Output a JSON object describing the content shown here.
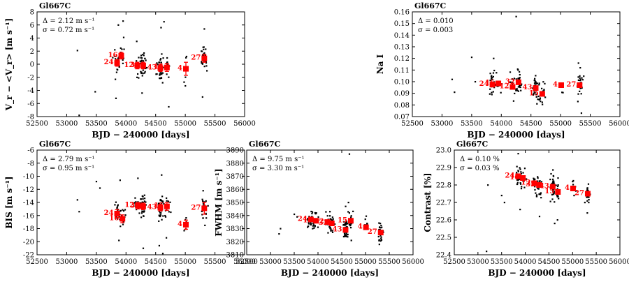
{
  "figure_name": "Gl667C",
  "chart_data": [
    {
      "id": "rv",
      "type": "scatter",
      "title": "Gl667C",
      "xlabel": "BJD − 240000 [days]",
      "ylabel": "V_r − <V_r> [m s⁻¹]",
      "xlim": [
        52500,
        56000
      ],
      "ylim": [
        -8,
        8
      ],
      "xticks": [
        52500,
        53000,
        53500,
        54000,
        54500,
        55000,
        55500,
        56000
      ],
      "yticks": [
        -8,
        -6,
        -4,
        -2,
        0,
        2,
        4,
        6,
        8
      ],
      "stats": [
        "Δ = 2.12 m s⁻¹",
        "σ = 0.72 m s⁻¹"
      ],
      "series": [
        {
          "name": "individual",
          "points": [
            [
              53180,
              2.1
            ],
            [
              53480,
              -4.2
            ],
            [
              53210,
              -7.8
            ],
            [
              53830,
              -5.2
            ],
            [
              53870,
              6.0
            ],
            [
              53960,
              4.1
            ],
            [
              53950,
              6.6
            ],
            [
              54180,
              3.5
            ],
            [
              54270,
              -4.4
            ],
            [
              54590,
              5.6
            ],
            [
              54640,
              6.5
            ],
            [
              54720,
              -6.5
            ],
            [
              55000,
              -3.3
            ],
            [
              55010,
              1.0
            ],
            [
              55290,
              -5.0
            ],
            [
              55320,
              5.4
            ],
            [
              55300,
              2.6
            ],
            [
              53820,
              -2.3
            ],
            [
              54250,
              1.0
            ],
            [
              54600,
              -1.5
            ]
          ]
        },
        {
          "name": "binned",
          "points": [
            {
              "x": 53850,
              "y": 0.2,
              "err": 0.5,
              "label": "24"
            },
            {
              "x": 53920,
              "y": 1.3,
              "err": 0.5,
              "label": "16"
            },
            {
              "x": 54190,
              "y": -0.2,
              "err": 0.5,
              "label": "12"
            },
            {
              "x": 54290,
              "y": -0.2,
              "err": 0.5,
              "label": "32"
            },
            {
              "x": 54580,
              "y": -0.6,
              "err": 0.5,
              "label": "43"
            },
            {
              "x": 54690,
              "y": -0.5,
              "err": 0.6,
              "label": "15"
            },
            {
              "x": 55010,
              "y": -0.7,
              "err": 1.0,
              "label": "4"
            },
            {
              "x": 55320,
              "y": 0.9,
              "err": 0.6,
              "label": "27"
            }
          ]
        }
      ]
    },
    {
      "id": "nai",
      "type": "scatter",
      "title": "Gl667C",
      "xlabel": "BJD − 240000 [days]",
      "ylabel": "Na I",
      "xlim": [
        52500,
        56000
      ],
      "ylim": [
        0.07,
        0.16
      ],
      "xticks": [
        52500,
        53000,
        53500,
        54000,
        54500,
        55000,
        55500,
        56000
      ],
      "yticks": [
        0.07,
        0.08,
        0.09,
        0.1,
        0.11,
        0.12,
        0.13,
        0.14,
        0.15,
        0.16
      ],
      "stats": [
        "Δ = 0.010",
        "σ = 0.003"
      ],
      "series": [
        {
          "name": "individual",
          "points": [
            [
              53170,
              0.102
            ],
            [
              53210,
              0.091
            ],
            [
              53500,
              0.121
            ],
            [
              53560,
              0.1
            ],
            [
              53870,
              0.12
            ],
            [
              54250,
              0.156
            ],
            [
              54600,
              0.081
            ],
            [
              55300,
              0.116
            ],
            [
              55330,
              0.112
            ],
            [
              55350,
              0.073
            ],
            [
              55290,
              0.083
            ],
            [
              54650,
              0.085
            ],
            [
              53840,
              0.089
            ]
          ]
        },
        {
          "name": "binned",
          "points": [
            {
              "x": 53850,
              "y": 0.0975,
              "err": 0.001,
              "label": "24"
            },
            {
              "x": 53950,
              "y": 0.0985,
              "err": 0.001,
              "label": "16"
            },
            {
              "x": 54190,
              "y": 0.0955,
              "err": 0.001,
              "label": "12"
            },
            {
              "x": 54290,
              "y": 0.0995,
              "err": 0.001,
              "label": "32"
            },
            {
              "x": 54580,
              "y": 0.0945,
              "err": 0.001,
              "label": "43"
            },
            {
              "x": 54690,
              "y": 0.0895,
              "err": 0.001,
              "label": "15"
            },
            {
              "x": 55010,
              "y": 0.097,
              "err": 0.001,
              "label": "4"
            },
            {
              "x": 55320,
              "y": 0.097,
              "err": 0.001,
              "label": "27"
            }
          ]
        }
      ]
    },
    {
      "id": "bis",
      "type": "scatter",
      "title": "Gl667C",
      "xlabel": "BJD − 240000 [days]",
      "ylabel": "BIS [m s⁻¹]",
      "xlim": [
        52500,
        56000
      ],
      "ylim": [
        -22,
        -6
      ],
      "xticks": [
        52500,
        53000,
        53500,
        54000,
        54500,
        55000,
        55500,
        56000
      ],
      "yticks": [
        -22,
        -20,
        -18,
        -16,
        -14,
        -12,
        -10,
        -8,
        -6
      ],
      "stats": [
        "Δ = 2.79 m s⁻¹",
        "σ = 0.95 m s⁻¹"
      ],
      "series": [
        {
          "name": "individual",
          "points": [
            [
              53180,
              -13.6
            ],
            [
              53210,
              -15.4
            ],
            [
              53500,
              -10.8
            ],
            [
              53560,
              -11.8
            ],
            [
              53880,
              -19.8
            ],
            [
              54200,
              -10.3
            ],
            [
              54290,
              -21.0
            ],
            [
              54560,
              -20.6
            ],
            [
              54620,
              -21.8
            ],
            [
              54600,
              -9.8
            ],
            [
              54980,
              -18.3
            ],
            [
              55300,
              -12.2
            ],
            [
              55330,
              -17.5
            ],
            [
              53900,
              -10.6
            ],
            [
              54680,
              -19.4
            ]
          ]
        },
        {
          "name": "binned",
          "points": [
            {
              "x": 53850,
              "y": -15.7,
              "err": 0.6,
              "label": "24"
            },
            {
              "x": 53940,
              "y": -16.5,
              "err": 0.6,
              "label": "16"
            },
            {
              "x": 54200,
              "y": -14.5,
              "err": 0.5,
              "label": "12"
            },
            {
              "x": 54290,
              "y": -14.6,
              "err": 0.5,
              "label": "32"
            },
            {
              "x": 54580,
              "y": -14.8,
              "err": 0.5,
              "label": "43"
            },
            {
              "x": 54690,
              "y": -14.6,
              "err": 0.6,
              "label": "15"
            },
            {
              "x": 55010,
              "y": -17.4,
              "err": 0.7,
              "label": "4"
            },
            {
              "x": 55320,
              "y": -14.9,
              "err": 0.9,
              "label": "27"
            }
          ]
        }
      ]
    },
    {
      "id": "fwhm",
      "type": "scatter",
      "title": "Gl667C",
      "xlabel": "BJD − 240000 [days]",
      "ylabel": "FWHM [m s⁻¹]",
      "xlim": [
        52500,
        56000
      ],
      "ylim": [
        3810,
        3890
      ],
      "xticks": [
        52500,
        53000,
        53500,
        54000,
        54500,
        55000,
        55500,
        56000
      ],
      "yticks": [
        3810,
        3820,
        3830,
        3840,
        3850,
        3860,
        3870,
        3880,
        3890
      ],
      "stats": [
        "Δ = 9.75 m s⁻¹",
        "σ = 3.30 m s⁻¹"
      ],
      "series": [
        {
          "name": "individual",
          "points": [
            [
              53180,
              3826
            ],
            [
              53210,
              3830
            ],
            [
              53500,
              3841
            ],
            [
              53560,
              3839
            ],
            [
              54580,
              3847
            ],
            [
              54660,
              3887
            ],
            [
              54640,
              3850
            ],
            [
              55290,
              3818
            ],
            [
              55340,
              3831
            ],
            [
              54700,
              3821
            ],
            [
              55030,
              3832
            ],
            [
              53850,
              3833
            ],
            [
              54250,
              3843
            ]
          ]
        },
        {
          "name": "binned",
          "points": [
            {
              "x": 53850,
              "y": 3837,
              "err": 1.0,
              "label": "24"
            },
            {
              "x": 53960,
              "y": 3836,
              "err": 1.0,
              "label": "16"
            },
            {
              "x": 54200,
              "y": 3835,
              "err": 1.0,
              "label": "12"
            },
            {
              "x": 54290,
              "y": 3834,
              "err": 1.0,
              "label": "32"
            },
            {
              "x": 54580,
              "y": 3829,
              "err": 1.2,
              "label": "43"
            },
            {
              "x": 54690,
              "y": 3836,
              "err": 1.0,
              "label": "15"
            },
            {
              "x": 55010,
              "y": 3831,
              "err": 1.0,
              "label": "4"
            },
            {
              "x": 55320,
              "y": 3827,
              "err": 1.5,
              "label": "27"
            }
          ]
        }
      ]
    },
    {
      "id": "contrast",
      "type": "scatter",
      "title": "Gl667C",
      "xlabel": "BJD − 240000 [days]",
      "ylabel": "Contrast [%]",
      "xlim": [
        52500,
        56000
      ],
      "ylim": [
        22.4,
        23.0
      ],
      "xticks": [
        52500,
        53000,
        53500,
        54000,
        54500,
        55000,
        55500,
        56000
      ],
      "yticks": [
        22.4,
        22.5,
        22.6,
        22.7,
        22.8,
        22.9,
        23.0
      ],
      "stats": [
        "Δ = 0.10 %",
        "σ = 0.03 %"
      ],
      "series": [
        {
          "name": "individual",
          "points": [
            [
              53180,
              22.42
            ],
            [
              53210,
              22.8
            ],
            [
              53500,
              22.74
            ],
            [
              53560,
              22.7
            ],
            [
              53850,
              22.98
            ],
            [
              54300,
              22.62
            ],
            [
              54620,
              22.58
            ],
            [
              54680,
              22.6
            ],
            [
              55000,
              22.82
            ],
            [
              55030,
              22.74
            ],
            [
              55310,
              22.64
            ],
            [
              55340,
              22.7
            ],
            [
              53890,
              22.66
            ]
          ]
        },
        {
          "name": "binned",
          "points": [
            {
              "x": 53850,
              "y": 22.85,
              "err": 0.01,
              "label": "24"
            },
            {
              "x": 53950,
              "y": 22.84,
              "err": 0.01,
              "label": "16"
            },
            {
              "x": 54190,
              "y": 22.81,
              "err": 0.01,
              "label": "12"
            },
            {
              "x": 54290,
              "y": 22.8,
              "err": 0.01,
              "label": "32"
            },
            {
              "x": 54580,
              "y": 22.79,
              "err": 0.01,
              "label": "43"
            },
            {
              "x": 54690,
              "y": 22.76,
              "err": 0.01,
              "label": "15"
            },
            {
              "x": 55010,
              "y": 22.78,
              "err": 0.01,
              "label": "4"
            },
            {
              "x": 55320,
              "y": 22.75,
              "err": 0.01,
              "label": "27"
            }
          ]
        }
      ]
    }
  ]
}
